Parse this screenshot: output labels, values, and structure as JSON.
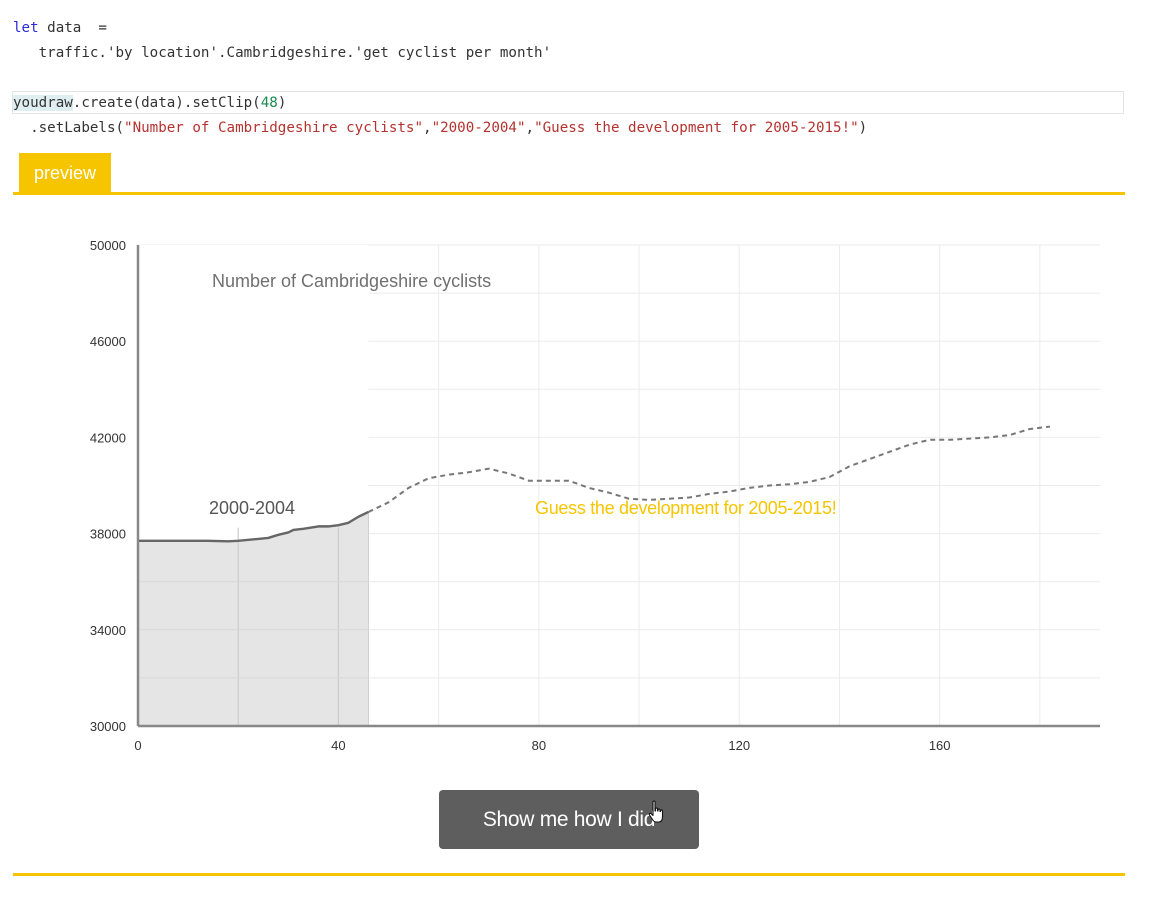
{
  "code": {
    "line1_kw": "let",
    "line1_rest": " data  =",
    "line2": "   traffic.'by location'.Cambridgeshire.'get cyclist per month'",
    "line3_obj": "youdraw",
    "line3_mid": ".create(data).setClip(",
    "line3_num": "48",
    "line3_end": ")",
    "line4_start": "  .setLabels(",
    "line4_s1": "\"Number of Cambridgeshire cyclists\"",
    "line4_c1": ",",
    "line4_s2": "\"2000-2004\"",
    "line4_c2": ",",
    "line4_s3": "\"Guess the development for 2005-2015!\"",
    "line4_end": ")"
  },
  "tabs": {
    "preview_label": "preview"
  },
  "button": {
    "show_label": "Show me how I did"
  },
  "colors": {
    "accent": "#f7c500",
    "line": "#666666",
    "dashed": "#777777",
    "area": "#e5e5e5",
    "grid": "#ebebeb"
  },
  "cursor_icon": "hand-pointer-icon",
  "chart_data": {
    "type": "line",
    "title": "Number of Cambridgeshire cyclists",
    "xlim": [
      0,
      192
    ],
    "ylim": [
      30000,
      50000
    ],
    "x_ticks": [
      0,
      40,
      80,
      120,
      160
    ],
    "y_ticks": [
      30000,
      34000,
      38000,
      42000,
      46000,
      50000
    ],
    "clip_label": "2000-2004",
    "guess_label": "Guess the development for 2005-2015!",
    "known": {
      "x": [
        0,
        5,
        10,
        14,
        18,
        20,
        24,
        26,
        28,
        30,
        31,
        33,
        36,
        38,
        40,
        42,
        44,
        46
      ],
      "y": [
        37700,
        37700,
        37700,
        37700,
        37680,
        37700,
        37780,
        37820,
        37950,
        38050,
        38150,
        38200,
        38300,
        38300,
        38350,
        38450,
        38700,
        38900
      ]
    },
    "guess": {
      "x": [
        46,
        50,
        54,
        58,
        62,
        66,
        70,
        74,
        78,
        82,
        86,
        90,
        94,
        98,
        102,
        106,
        110,
        114,
        118,
        122,
        126,
        130,
        134,
        138,
        142,
        146,
        150,
        154,
        158,
        162,
        166,
        170,
        174,
        178,
        182
      ],
      "y": [
        38900,
        39300,
        39900,
        40300,
        40450,
        40550,
        40700,
        40500,
        40200,
        40200,
        40200,
        39900,
        39700,
        39450,
        39400,
        39450,
        39500,
        39650,
        39750,
        39900,
        40000,
        40050,
        40150,
        40350,
        40800,
        41100,
        41400,
        41700,
        41900,
        41900,
        41950,
        42000,
        42100,
        42350,
        42450
      ]
    }
  }
}
